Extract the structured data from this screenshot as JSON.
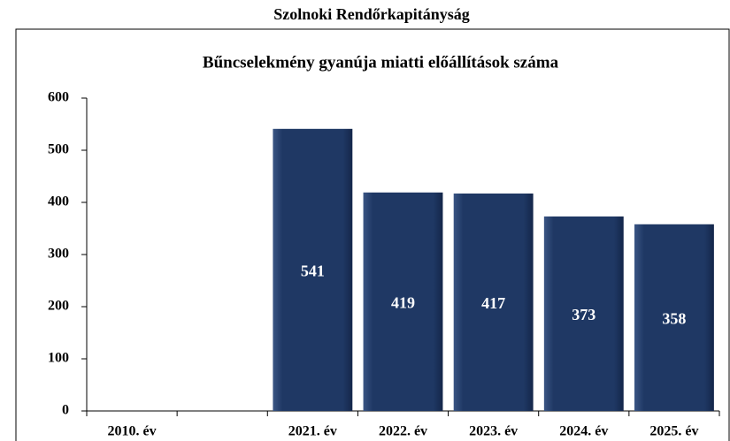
{
  "chart_data": {
    "type": "bar",
    "header": "Szolnoki Rendőrkapitányság",
    "title": "Bűncselekmény gyanúja miatti előállítások száma",
    "categories": [
      "2010. év",
      null,
      "2021. év",
      "2022. év",
      "2023. év",
      "2024. év",
      "2025. év"
    ],
    "values": [
      null,
      null,
      541,
      419,
      417,
      373,
      358
    ],
    "color": "#1f3864",
    "ylim": [
      0,
      600
    ],
    "yticks": [
      0,
      100,
      200,
      300,
      400,
      500,
      600
    ],
    "grid": false
  }
}
